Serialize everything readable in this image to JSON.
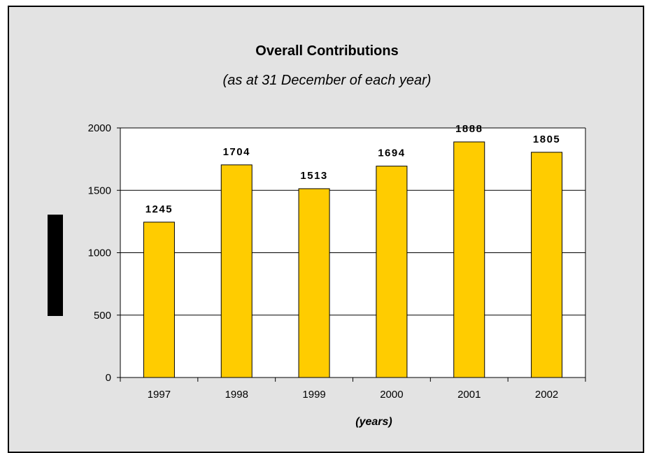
{
  "chart_data": {
    "type": "bar",
    "title": "Overall Contributions",
    "subtitle": "(as at 31 December of each year)",
    "xlabel": "(years)",
    "ylabel": "",
    "categories": [
      "1997",
      "1998",
      "1999",
      "2000",
      "2001",
      "2002"
    ],
    "values": [
      1245,
      1704,
      1513,
      1694,
      1888,
      1805
    ],
    "data_labels": [
      "1245",
      "1704",
      "1513",
      "1694",
      "1888",
      "1805"
    ],
    "ylim": [
      0,
      2000
    ],
    "yticks": [
      "0",
      "500",
      "1000",
      "1500",
      "2000"
    ],
    "ytick_values": [
      0,
      500,
      1000,
      1500,
      2000
    ],
    "grid": true,
    "bar_color": "#ffcc00",
    "plot_background": "#ffffff",
    "chart_background": "#e3e3e3"
  }
}
